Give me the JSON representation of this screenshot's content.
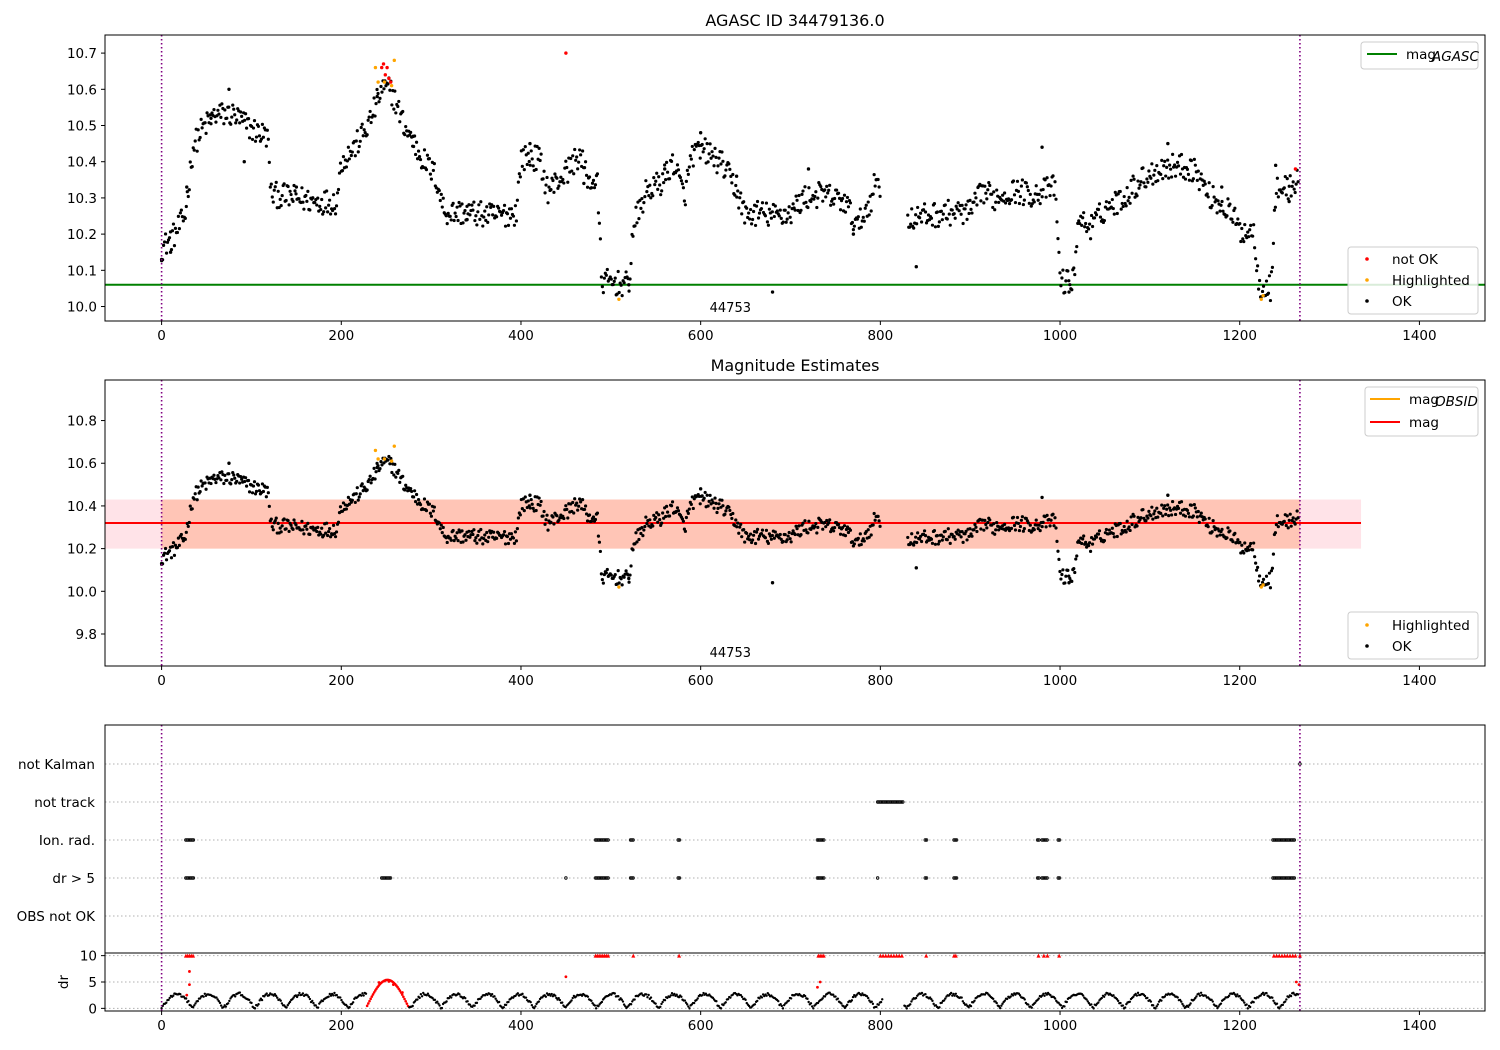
{
  "chart_data": [
    {
      "type": "scatter",
      "title": "AGASC ID 34479136.0",
      "xlim": [
        -63,
        1473
      ],
      "ylim": [
        9.96,
        10.75
      ],
      "xticks": [
        0,
        200,
        400,
        600,
        800,
        1000,
        1200,
        1400
      ],
      "yticks": [
        10.0,
        10.1,
        10.2,
        10.3,
        10.4,
        10.5,
        10.6,
        10.7
      ],
      "obsid_boundaries": [
        0,
        1267
      ],
      "obsid_label": "44753",
      "reference_lines": [
        {
          "name": "mag_AGASC",
          "value": 10.06,
          "color": "#008000"
        }
      ],
      "series": [
        {
          "name": "not OK",
          "color": "#ff0000",
          "points": [
            [
              245,
              10.66
            ],
            [
              247,
              10.67
            ],
            [
              249,
              10.64
            ],
            [
              251,
              10.66
            ],
            [
              253,
              10.63
            ],
            [
              255,
              10.62
            ],
            [
              450,
              10.7
            ],
            [
              1262,
              10.38
            ]
          ]
        },
        {
          "name": "Highlighted",
          "color": "#ffa500",
          "points": [
            [
              238,
              10.66
            ],
            [
              241,
              10.62
            ],
            [
              248,
              10.62
            ],
            [
              256,
              10.61
            ],
            [
              259,
              10.68
            ],
            [
              509,
              10.02
            ],
            [
              1224,
              10.02
            ],
            [
              1226,
              10.03
            ]
          ]
        },
        {
          "name": "OK",
          "color": "#000000",
          "points": [
            [
              0,
              10.13
            ],
            [
              10,
              10.15
            ],
            [
              28,
              10.33
            ],
            [
              55,
              10.52
            ],
            [
              75,
              10.6
            ],
            [
              92,
              10.4
            ],
            [
              150,
              10.33
            ],
            [
              240,
              10.58
            ],
            [
              280,
              10.47
            ],
            [
              340,
              10.24
            ],
            [
              410,
              10.45
            ],
            [
              470,
              10.34
            ],
            [
              520,
              10.06
            ],
            [
              560,
              10.38
            ],
            [
              600,
              10.48
            ],
            [
              640,
              10.36
            ],
            [
              680,
              10.04
            ],
            [
              720,
              10.38
            ],
            [
              770,
              10.2
            ],
            [
              840,
              10.11
            ],
            [
              980,
              10.44
            ],
            [
              1010,
              10.04
            ],
            [
              1120,
              10.45
            ],
            [
              1180,
              10.33
            ],
            [
              1240,
              10.39
            ],
            [
              1255,
              10.29
            ]
          ]
        }
      ],
      "legend_upper": {
        "position": "upper right",
        "entries": [
          "mag_AGASC"
        ]
      },
      "legend_lower": {
        "position": "lower right",
        "entries": [
          "not OK",
          "Highlighted",
          "OK"
        ]
      }
    },
    {
      "type": "scatter",
      "title": "Magnitude Estimates",
      "xlim": [
        -63,
        1473
      ],
      "ylim": [
        9.65,
        10.99
      ],
      "xticks": [
        0,
        200,
        400,
        600,
        800,
        1000,
        1200,
        1400
      ],
      "yticks": [
        9.8,
        10.0,
        10.2,
        10.4,
        10.6,
        10.8
      ],
      "obsid_boundaries": [
        0,
        1267
      ],
      "obsid_label": "44753",
      "bands": [
        {
          "x": [
            -63,
            1335
          ],
          "y": [
            10.2,
            10.43
          ],
          "color": "#ffc0cb"
        },
        {
          "x": [
            0,
            1267
          ],
          "y": [
            10.2,
            10.43
          ],
          "color": "#ffa07a"
        }
      ],
      "reference_lines": [
        {
          "name": "mag_OBSID",
          "value": 10.32,
          "color": "#ffa500",
          "x": [
            0,
            1267
          ]
        },
        {
          "name": "mag",
          "value": 10.32,
          "color": "#ff0000",
          "x": [
            -63,
            1335
          ]
        }
      ],
      "series": [
        {
          "name": "Highlighted",
          "color": "#ffa500",
          "points": [
            [
              238,
              10.66
            ],
            [
              241,
              10.62
            ],
            [
              248,
              10.62
            ],
            [
              256,
              10.61
            ],
            [
              259,
              10.68
            ],
            [
              509,
              10.02
            ],
            [
              1224,
              10.02
            ],
            [
              1226,
              10.03
            ]
          ]
        },
        {
          "name": "OK",
          "color": "#000000",
          "points": [
            [
              0,
              10.13
            ],
            [
              75,
              10.6
            ],
            [
              240,
              10.58
            ],
            [
              410,
              10.45
            ],
            [
              520,
              10.06
            ],
            [
              600,
              10.48
            ],
            [
              680,
              10.04
            ],
            [
              840,
              10.11
            ],
            [
              980,
              10.44
            ],
            [
              1010,
              10.04
            ],
            [
              1120,
              10.45
            ]
          ]
        }
      ],
      "legend_upper": {
        "position": "upper right",
        "entries": [
          "mag_OBSID",
          "mag"
        ]
      },
      "legend_lower": {
        "position": "lower right",
        "entries": [
          "Highlighted",
          "OK"
        ]
      }
    },
    {
      "type": "scatter",
      "title": "",
      "xlim": [
        -63,
        1473
      ],
      "flag_rows": [
        "not Kalman",
        "not track",
        "Ion. rad.",
        "dr > 5",
        "OBS not OK"
      ],
      "flags": {
        "not Kalman": [
          [
            1267,
            1267
          ]
        ],
        "not track": [
          [
            797,
            825
          ]
        ],
        "Ion. rad.": [
          [
            27,
            36
          ],
          [
            483,
            497
          ],
          [
            522,
            526
          ],
          [
            575,
            577
          ],
          [
            730,
            738
          ],
          [
            850,
            852
          ],
          [
            882,
            885
          ],
          [
            975,
            977
          ],
          [
            980,
            986
          ],
          [
            998,
            1000
          ],
          [
            1237,
            1262
          ]
        ],
        "dr > 5": [
          [
            27,
            36
          ],
          [
            245,
            255
          ],
          [
            450,
            450
          ],
          [
            483,
            497
          ],
          [
            522,
            526
          ],
          [
            575,
            577
          ],
          [
            730,
            738
          ],
          [
            797,
            797
          ],
          [
            850,
            852
          ],
          [
            882,
            885
          ],
          [
            975,
            977
          ],
          [
            980,
            986
          ],
          [
            998,
            1000
          ],
          [
            1237,
            1262
          ]
        ],
        "OBS not OK": []
      },
      "obsid_boundaries": [
        0,
        1267
      ],
      "dr": {
        "ylabel": "dr",
        "yticks": [
          0,
          5,
          10
        ],
        "ylim": [
          -0.5,
          10.5
        ],
        "clip_value": 10,
        "red_markers_at_10": [
          27,
          29,
          31,
          33,
          35,
          483,
          485,
          487,
          489,
          491,
          493,
          495,
          497,
          525,
          576,
          731,
          733,
          735,
          737,
          800,
          803,
          806,
          809,
          812,
          815,
          818,
          821,
          824,
          851,
          882,
          884,
          976,
          982,
          986,
          999,
          1238,
          1241,
          1244,
          1247,
          1250,
          1253,
          1256,
          1259,
          1262,
          1267
        ],
        "red_points": [
          [
            31,
            7
          ],
          [
            31,
            4.5
          ],
          [
            28,
            2.5
          ],
          [
            242,
            4.9
          ],
          [
            248,
            5.2
          ],
          [
            253,
            5.1
          ],
          [
            258,
            4.5
          ],
          [
            268,
            3.0
          ],
          [
            450,
            6.0
          ],
          [
            733,
            5.0
          ],
          [
            730,
            4.0
          ],
          [
            1263,
            5.0
          ],
          [
            1266,
            4.5
          ]
        ]
      }
    }
  ]
}
